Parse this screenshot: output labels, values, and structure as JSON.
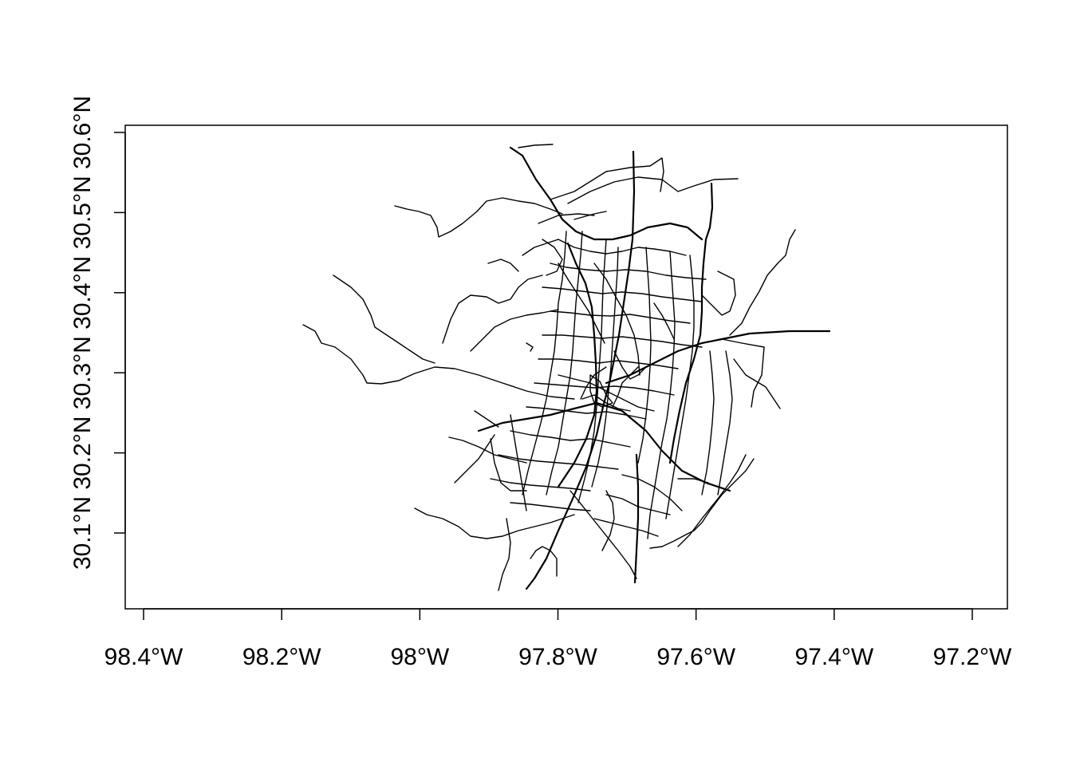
{
  "map": {
    "x_ticks": [
      {
        "value": -98.4,
        "label": "98.4°W"
      },
      {
        "value": -98.2,
        "label": "98.2°W"
      },
      {
        "value": -98.0,
        "label": "98°W"
      },
      {
        "value": -97.8,
        "label": "97.8°W"
      },
      {
        "value": -97.6,
        "label": "97.6°W"
      },
      {
        "value": -97.4,
        "label": "97.4°W"
      },
      {
        "value": -97.2,
        "label": "97.2°W"
      }
    ],
    "y_ticks": [
      {
        "value": 30.1,
        "label": "30.1°N"
      },
      {
        "value": 30.2,
        "label": "30.2°N"
      },
      {
        "value": 30.3,
        "label": "30.3°N"
      },
      {
        "value": 30.4,
        "label": "30.4°N"
      },
      {
        "value": 30.5,
        "label": "30.5°N"
      },
      {
        "value": 30.6,
        "label": "30.6°N"
      }
    ],
    "colors": {
      "lines": "#000000",
      "background": "#ffffff"
    }
  }
}
